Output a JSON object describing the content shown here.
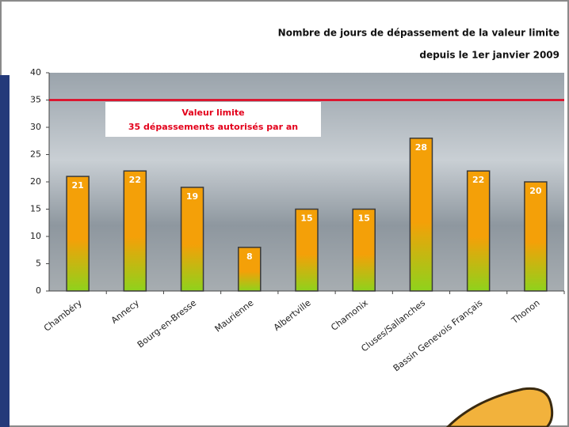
{
  "chart_data": {
    "type": "bar",
    "title": "Nombre de jours de dépassement de la valeur limite",
    "subtitle": "depuis le 1er janvier 2009",
    "categories": [
      "Chambéry",
      "Annecy",
      "Bourg-en-Bresse",
      "Maurienne",
      "Albertville",
      "Chamonix",
      "Cluses/Sallanches",
      "Bassin Genevois Français",
      "Thonon"
    ],
    "values": [
      21,
      22,
      19,
      8,
      15,
      15,
      28,
      22,
      20
    ],
    "bar_gradient": [
      "#f4a008",
      "#8fd21c"
    ],
    "ylim": [
      0,
      40
    ],
    "yticks": [
      0,
      5,
      10,
      15,
      20,
      25,
      30,
      35,
      40
    ],
    "grid": false,
    "threshold": {
      "value": 35,
      "color": "#e3001b",
      "labels": [
        "Valeur limite",
        "35 dépassements autorisés par an"
      ]
    }
  }
}
